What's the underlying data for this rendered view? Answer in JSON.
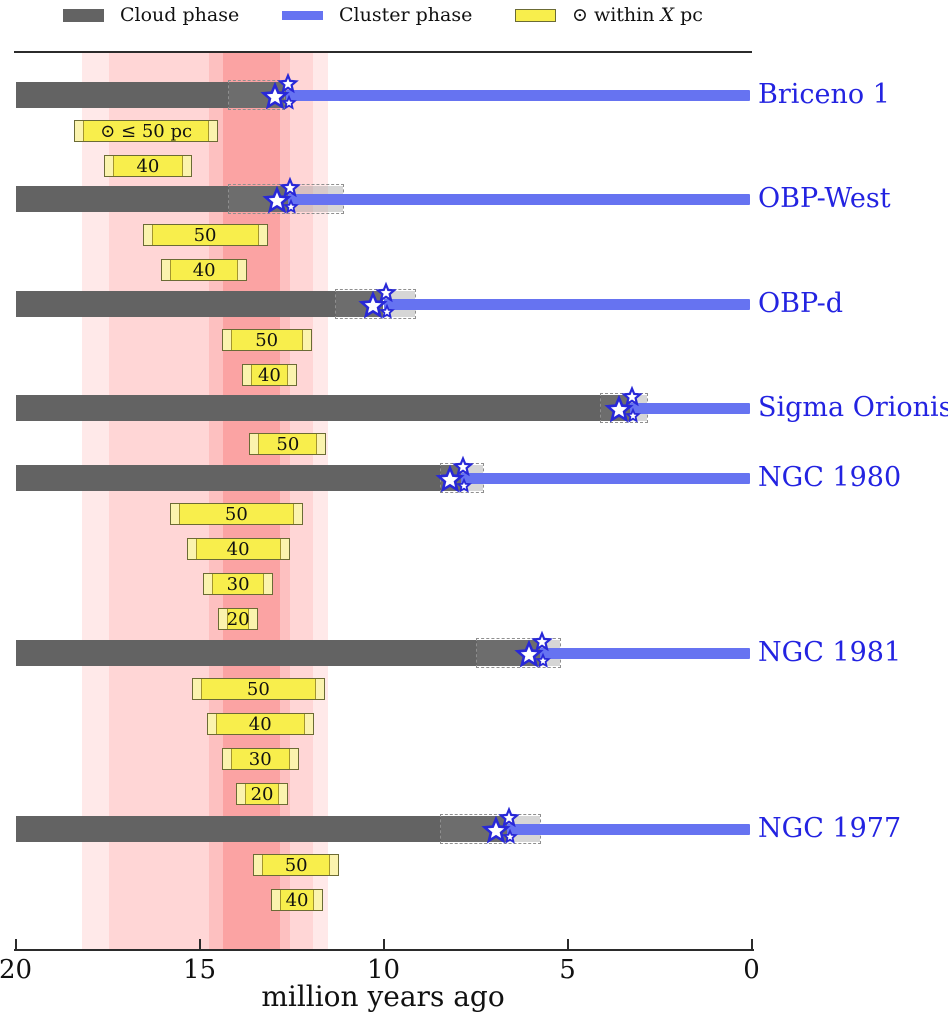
{
  "legend": {
    "cloud_label": "Cloud phase",
    "cluster_label": "Cluster phase",
    "sun_label_pre": "⊙ within ",
    "sun_label_italic": "X",
    "sun_label_post": " pc"
  },
  "chart_data": {
    "type": "bar",
    "subtype": "horizontal-timeline",
    "title": "",
    "xlabel": "million years ago",
    "x_axis": {
      "min": 0,
      "max": 20,
      "reversed": true,
      "ticks": [
        20,
        15,
        10,
        5,
        0
      ],
      "unit": "Myr"
    },
    "legend": [
      {
        "label": "Cloud phase",
        "color": "#636363"
      },
      {
        "label": "Cluster phase",
        "color": "#6673f1"
      },
      {
        "label": "⊙ within X pc",
        "color": "#f8ee4c"
      }
    ],
    "sun_proximity_band_layers": [
      {
        "from_myr": 18.2,
        "to_myr": 11.5,
        "color": "#ffe9e9"
      },
      {
        "from_myr": 17.45,
        "to_myr": 11.9,
        "color": "#ffd6d6"
      },
      {
        "from_myr": 14.75,
        "to_myr": 12.55,
        "color": "#fdc0c0"
      },
      {
        "from_myr": 14.35,
        "to_myr": 12.8,
        "color": "#fba3a3"
      }
    ],
    "clusters": [
      {
        "name": "Briceno 1",
        "cloud_from_myr": 20,
        "cloud_to_myr": 14.2,
        "formation_myr": 12.65,
        "uncertainty_from_myr": 14.2,
        "uncertainty_to_myr": 12.7,
        "cluster_to_myr": 0.05,
        "sun_bars": [
          {
            "label": "⊙ ≤ 50 pc",
            "from_myr": 18.4,
            "to_myr": 14.5
          },
          {
            "label": "40",
            "from_myr": 17.6,
            "to_myr": 15.2
          }
        ]
      },
      {
        "name": "OBP-West",
        "cloud_from_myr": 20,
        "cloud_to_myr": 14.2,
        "formation_myr": 12.6,
        "uncertainty_from_myr": 14.2,
        "uncertainty_to_myr": 11.1,
        "cluster_to_myr": 0.05,
        "sun_bars": [
          {
            "label": "50",
            "from_myr": 16.55,
            "to_myr": 13.15
          },
          {
            "label": "40",
            "from_myr": 16.05,
            "to_myr": 13.7
          }
        ]
      },
      {
        "name": "OBP-d",
        "cloud_from_myr": 20,
        "cloud_to_myr": 11.3,
        "formation_myr": 10.0,
        "uncertainty_from_myr": 11.3,
        "uncertainty_to_myr": 9.15,
        "cluster_to_myr": 0.05,
        "sun_bars": [
          {
            "label": "50",
            "from_myr": 14.4,
            "to_myr": 11.95
          },
          {
            "label": "40",
            "from_myr": 13.85,
            "to_myr": 12.35
          }
        ]
      },
      {
        "name": "Sigma Orionis",
        "cloud_from_myr": 20,
        "cloud_to_myr": 4.1,
        "formation_myr": 3.3,
        "uncertainty_from_myr": 4.1,
        "uncertainty_to_myr": 2.85,
        "cluster_to_myr": 0.05,
        "sun_bars": [
          {
            "label": "50",
            "from_myr": 13.65,
            "to_myr": 11.55
          }
        ]
      },
      {
        "name": "NGC 1980",
        "cloud_from_myr": 20,
        "cloud_to_myr": 8.45,
        "formation_myr": 7.9,
        "uncertainty_from_myr": 8.45,
        "uncertainty_to_myr": 7.3,
        "cluster_to_myr": 0.05,
        "sun_bars": [
          {
            "label": "50",
            "from_myr": 15.8,
            "to_myr": 12.2
          },
          {
            "label": "40",
            "from_myr": 15.35,
            "to_myr": 12.55
          },
          {
            "label": "30",
            "from_myr": 14.9,
            "to_myr": 13.0
          },
          {
            "label": "20",
            "from_myr": 14.5,
            "to_myr": 13.4
          }
        ]
      },
      {
        "name": "NGC 1981",
        "cloud_from_myr": 20,
        "cloud_to_myr": 7.45,
        "formation_myr": 5.75,
        "uncertainty_from_myr": 7.45,
        "uncertainty_to_myr": 5.2,
        "cluster_to_myr": 0.05,
        "sun_bars": [
          {
            "label": "50",
            "from_myr": 15.2,
            "to_myr": 11.6
          },
          {
            "label": "40",
            "from_myr": 14.8,
            "to_myr": 11.9
          },
          {
            "label": "30",
            "from_myr": 14.4,
            "to_myr": 12.3
          },
          {
            "label": "20",
            "from_myr": 14.0,
            "to_myr": 12.6
          }
        ]
      },
      {
        "name": "NGC 1977",
        "cloud_from_myr": 20,
        "cloud_to_myr": 8.45,
        "formation_myr": 6.65,
        "uncertainty_from_myr": 8.45,
        "uncertainty_to_myr": 5.75,
        "cluster_to_myr": 0.05,
        "sun_bars": [
          {
            "label": "50",
            "from_myr": 13.55,
            "to_myr": 11.2
          },
          {
            "label": "40",
            "from_myr": 13.05,
            "to_myr": 11.65
          }
        ]
      }
    ],
    "colors": {
      "cloud_solid": "#636363",
      "cloud_extension": "#6d6d6d",
      "uncertainty_fill": "rgba(165,165,165,0.45)",
      "uncertainty_border": "#8f8f8f",
      "cluster_bar": "#6673f1",
      "cluster_label": "#2323e1",
      "sun_bar_fill": "#f8ee4c",
      "sun_bar_cap": "#fbf3ae",
      "sun_bar_border": "#6b6b35",
      "sun_bar_cap_line": "#a3952e",
      "star_stroke": "#2828d8",
      "star_fill": "#ffffff"
    }
  }
}
